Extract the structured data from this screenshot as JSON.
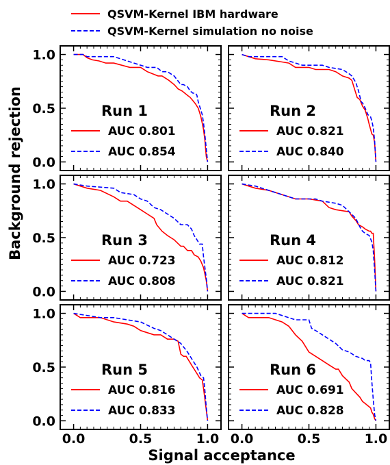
{
  "figure": {
    "xlabel": "Signal acceptance",
    "ylabel": "Background rejection",
    "legend": [
      {
        "label": "QSVM-Kernel IBM hardware",
        "color": "#ff0000",
        "dash": "solid"
      },
      {
        "label": "QSVM-Kernel simulation no noise",
        "color": "#0000ff",
        "dash": "dashed"
      }
    ],
    "colors": {
      "hardware": "#ff0000",
      "simulation": "#0000ff"
    }
  },
  "chart_data": [
    {
      "type": "line",
      "title": "Run 1",
      "xlim": [
        -0.1,
        1.1
      ],
      "ylim": [
        -0.08,
        1.08
      ],
      "xticks": [
        "0.0",
        "0.5",
        "1.0"
      ],
      "yticks": [
        "0.0",
        "0.5",
        "1.0"
      ],
      "grid": false,
      "legend_placement": "lower-left",
      "series": [
        {
          "name": "AUC 0.801",
          "color": "#ff0000",
          "dash": "solid",
          "x": [
            0,
            0.07,
            0.1,
            0.14,
            0.19,
            0.24,
            0.3,
            0.42,
            0.5,
            0.55,
            0.63,
            0.66,
            0.71,
            0.75,
            0.78,
            0.81,
            0.83,
            0.85,
            0.87,
            0.89,
            0.91,
            0.93,
            0.94,
            0.95,
            0.96,
            0.97,
            0.98,
            0.985,
            0.99,
            1.0
          ],
          "y": [
            1.0,
            1.0,
            0.97,
            0.95,
            0.94,
            0.92,
            0.92,
            0.88,
            0.88,
            0.84,
            0.8,
            0.8,
            0.76,
            0.72,
            0.68,
            0.66,
            0.64,
            0.62,
            0.6,
            0.57,
            0.54,
            0.5,
            0.46,
            0.42,
            0.36,
            0.3,
            0.2,
            0.12,
            0.05,
            0.0
          ]
        },
        {
          "name": "AUC 0.854",
          "color": "#0000ff",
          "dash": "dashed",
          "x": [
            0,
            0.07,
            0.1,
            0.3,
            0.35,
            0.4,
            0.5,
            0.55,
            0.62,
            0.66,
            0.7,
            0.75,
            0.8,
            0.82,
            0.85,
            0.87,
            0.89,
            0.91,
            0.92,
            0.93,
            0.94,
            0.95,
            0.96,
            0.97,
            0.98,
            0.99,
            1.0
          ],
          "y": [
            1.0,
            1.0,
            0.98,
            0.98,
            0.96,
            0.94,
            0.9,
            0.88,
            0.88,
            0.84,
            0.84,
            0.8,
            0.72,
            0.72,
            0.7,
            0.66,
            0.64,
            0.64,
            0.62,
            0.56,
            0.52,
            0.48,
            0.44,
            0.36,
            0.25,
            0.12,
            0.0
          ]
        }
      ]
    },
    {
      "type": "line",
      "title": "Run 2",
      "xlim": [
        -0.1,
        1.1
      ],
      "ylim": [
        -0.08,
        1.08
      ],
      "xticks": [
        "0.0",
        "0.5",
        "1.0"
      ],
      "yticks": [
        "0.0",
        "0.5",
        "1.0"
      ],
      "grid": false,
      "legend_placement": "lower-left",
      "series": [
        {
          "name": "AUC 0.821",
          "color": "#ff0000",
          "dash": "solid",
          "x": [
            0,
            0.05,
            0.1,
            0.2,
            0.3,
            0.35,
            0.4,
            0.5,
            0.55,
            0.65,
            0.7,
            0.75,
            0.8,
            0.82,
            0.84,
            0.86,
            0.88,
            0.9,
            0.92,
            0.94,
            0.95,
            0.97,
            0.98,
            0.99,
            1.0
          ],
          "y": [
            1.0,
            0.98,
            0.96,
            0.95,
            0.93,
            0.92,
            0.88,
            0.88,
            0.86,
            0.86,
            0.84,
            0.8,
            0.78,
            0.76,
            0.68,
            0.6,
            0.58,
            0.52,
            0.48,
            0.4,
            0.35,
            0.26,
            0.25,
            0.18,
            0.0
          ]
        },
        {
          "name": "AUC 0.840",
          "color": "#0000ff",
          "dash": "dashed",
          "x": [
            0,
            0.05,
            0.3,
            0.35,
            0.45,
            0.6,
            0.65,
            0.75,
            0.8,
            0.82,
            0.85,
            0.87,
            0.89,
            0.9,
            0.92,
            0.94,
            0.96,
            0.97,
            0.98,
            0.99,
            1.0
          ],
          "y": [
            1.0,
            0.98,
            0.98,
            0.94,
            0.9,
            0.9,
            0.88,
            0.86,
            0.82,
            0.8,
            0.74,
            0.66,
            0.56,
            0.55,
            0.5,
            0.44,
            0.42,
            0.38,
            0.32,
            0.2,
            0.0
          ]
        }
      ]
    },
    {
      "type": "line",
      "title": "Run 3",
      "xlim": [
        -0.1,
        1.1
      ],
      "ylim": [
        -0.08,
        1.08
      ],
      "xticks": [
        "0.0",
        "0.5",
        "1.0"
      ],
      "yticks": [
        "0.0",
        "0.5",
        "1.0"
      ],
      "grid": false,
      "legend_placement": "lower-left",
      "series": [
        {
          "name": "AUC 0.723",
          "color": "#ff0000",
          "dash": "solid",
          "x": [
            0,
            0.05,
            0.1,
            0.2,
            0.3,
            0.35,
            0.4,
            0.45,
            0.5,
            0.55,
            0.6,
            0.62,
            0.66,
            0.7,
            0.75,
            0.8,
            0.82,
            0.85,
            0.88,
            0.9,
            0.93,
            0.95,
            0.97,
            0.98,
            0.99,
            1.0
          ],
          "y": [
            1.0,
            0.98,
            0.96,
            0.94,
            0.88,
            0.84,
            0.84,
            0.8,
            0.76,
            0.72,
            0.68,
            0.62,
            0.56,
            0.52,
            0.48,
            0.42,
            0.42,
            0.38,
            0.38,
            0.34,
            0.32,
            0.28,
            0.22,
            0.16,
            0.1,
            0.0
          ]
        },
        {
          "name": "AUC 0.808",
          "color": "#0000ff",
          "dash": "dashed",
          "x": [
            0,
            0.1,
            0.3,
            0.35,
            0.45,
            0.5,
            0.55,
            0.6,
            0.65,
            0.7,
            0.75,
            0.8,
            0.85,
            0.88,
            0.9,
            0.92,
            0.94,
            0.96,
            0.97,
            0.98,
            0.99,
            1.0
          ],
          "y": [
            1.0,
            0.98,
            0.96,
            0.92,
            0.9,
            0.86,
            0.84,
            0.78,
            0.76,
            0.72,
            0.68,
            0.62,
            0.62,
            0.58,
            0.52,
            0.48,
            0.44,
            0.44,
            0.32,
            0.22,
            0.12,
            0.0
          ]
        }
      ]
    },
    {
      "type": "line",
      "title": "Run 4",
      "xlim": [
        -0.1,
        1.1
      ],
      "ylim": [
        -0.08,
        1.08
      ],
      "xticks": [
        "0.0",
        "0.5",
        "1.0"
      ],
      "yticks": [
        "0.0",
        "0.5",
        "1.0"
      ],
      "grid": false,
      "legend_placement": "lower-left",
      "series": [
        {
          "name": "AUC 0.812",
          "color": "#ff0000",
          "dash": "solid",
          "x": [
            0,
            0.05,
            0.1,
            0.2,
            0.3,
            0.4,
            0.5,
            0.6,
            0.65,
            0.7,
            0.8,
            0.82,
            0.85,
            0.87,
            0.9,
            0.92,
            0.95,
            0.96,
            0.97,
            0.98,
            0.99,
            1.0
          ],
          "y": [
            1.0,
            0.98,
            0.96,
            0.94,
            0.9,
            0.86,
            0.86,
            0.84,
            0.78,
            0.76,
            0.74,
            0.7,
            0.66,
            0.62,
            0.6,
            0.58,
            0.56,
            0.56,
            0.54,
            0.54,
            0.3,
            0.0
          ]
        },
        {
          "name": "AUC 0.821",
          "color": "#0000ff",
          "dash": "dashed",
          "x": [
            0,
            0.1,
            0.3,
            0.4,
            0.55,
            0.6,
            0.7,
            0.75,
            0.8,
            0.85,
            0.88,
            0.9,
            0.92,
            0.95,
            0.97,
            0.98,
            0.99,
            1.0
          ],
          "y": [
            1.0,
            0.98,
            0.9,
            0.86,
            0.86,
            0.84,
            0.82,
            0.8,
            0.74,
            0.68,
            0.6,
            0.56,
            0.54,
            0.52,
            0.46,
            0.38,
            0.2,
            0.0
          ]
        }
      ]
    },
    {
      "type": "line",
      "title": "Run 5",
      "xlim": [
        -0.1,
        1.1
      ],
      "ylim": [
        -0.08,
        1.08
      ],
      "xticks": [
        "0.0",
        "0.5",
        "1.0"
      ],
      "yticks": [
        "0.0",
        "0.5",
        "1.0"
      ],
      "grid": false,
      "legend_placement": "lower-left",
      "series": [
        {
          "name": "AUC 0.816",
          "color": "#ff0000",
          "dash": "solid",
          "x": [
            0,
            0.05,
            0.2,
            0.3,
            0.4,
            0.45,
            0.5,
            0.55,
            0.6,
            0.65,
            0.7,
            0.75,
            0.78,
            0.8,
            0.82,
            0.84,
            0.86,
            0.88,
            0.9,
            0.92,
            0.94,
            0.96,
            0.97,
            0.98,
            0.99,
            1.0
          ],
          "y": [
            1.0,
            0.96,
            0.96,
            0.92,
            0.9,
            0.88,
            0.84,
            0.82,
            0.8,
            0.8,
            0.76,
            0.76,
            0.74,
            0.62,
            0.6,
            0.6,
            0.56,
            0.52,
            0.48,
            0.44,
            0.4,
            0.38,
            0.3,
            0.2,
            0.1,
            0.0
          ]
        },
        {
          "name": "AUC 0.833",
          "color": "#0000ff",
          "dash": "dashed",
          "x": [
            0,
            0.1,
            0.2,
            0.3,
            0.4,
            0.5,
            0.6,
            0.65,
            0.7,
            0.75,
            0.8,
            0.85,
            0.88,
            0.9,
            0.92,
            0.95,
            0.97,
            0.98,
            0.99,
            1.0
          ],
          "y": [
            1.0,
            0.98,
            0.96,
            0.96,
            0.94,
            0.92,
            0.86,
            0.84,
            0.8,
            0.76,
            0.72,
            0.64,
            0.58,
            0.54,
            0.5,
            0.42,
            0.4,
            0.28,
            0.12,
            0.0
          ]
        }
      ]
    },
    {
      "type": "line",
      "title": "Run 6",
      "xlim": [
        -0.1,
        1.1
      ],
      "ylim": [
        -0.08,
        1.08
      ],
      "xticks": [
        "0.0",
        "0.5",
        "1.0"
      ],
      "yticks": [
        "0.0",
        "0.5",
        "1.0"
      ],
      "grid": false,
      "legend_placement": "lower-left",
      "series": [
        {
          "name": "AUC 0.691",
          "color": "#ff0000",
          "dash": "solid",
          "x": [
            0,
            0.05,
            0.2,
            0.3,
            0.35,
            0.4,
            0.45,
            0.5,
            0.55,
            0.6,
            0.65,
            0.7,
            0.72,
            0.75,
            0.8,
            0.82,
            0.85,
            0.88,
            0.9,
            0.92,
            0.94,
            0.96,
            0.97,
            0.98,
            0.99,
            1.0
          ],
          "y": [
            1.0,
            0.96,
            0.96,
            0.92,
            0.88,
            0.8,
            0.74,
            0.64,
            0.6,
            0.56,
            0.52,
            0.48,
            0.48,
            0.42,
            0.36,
            0.3,
            0.26,
            0.22,
            0.18,
            0.16,
            0.14,
            0.12,
            0.08,
            0.06,
            0.02,
            0.0
          ]
        },
        {
          "name": "AUC 0.828",
          "color": "#0000ff",
          "dash": "dashed",
          "x": [
            0,
            0.1,
            0.25,
            0.3,
            0.4,
            0.5,
            0.52,
            0.55,
            0.6,
            0.65,
            0.7,
            0.75,
            0.8,
            0.85,
            0.9,
            0.92,
            0.95,
            0.96,
            0.97,
            0.98,
            0.99,
            1.0
          ],
          "y": [
            1.0,
            1.0,
            1.0,
            0.98,
            0.94,
            0.94,
            0.86,
            0.84,
            0.8,
            0.76,
            0.72,
            0.66,
            0.64,
            0.6,
            0.58,
            0.56,
            0.56,
            0.54,
            0.36,
            0.2,
            0.06,
            0.0
          ]
        }
      ]
    }
  ]
}
